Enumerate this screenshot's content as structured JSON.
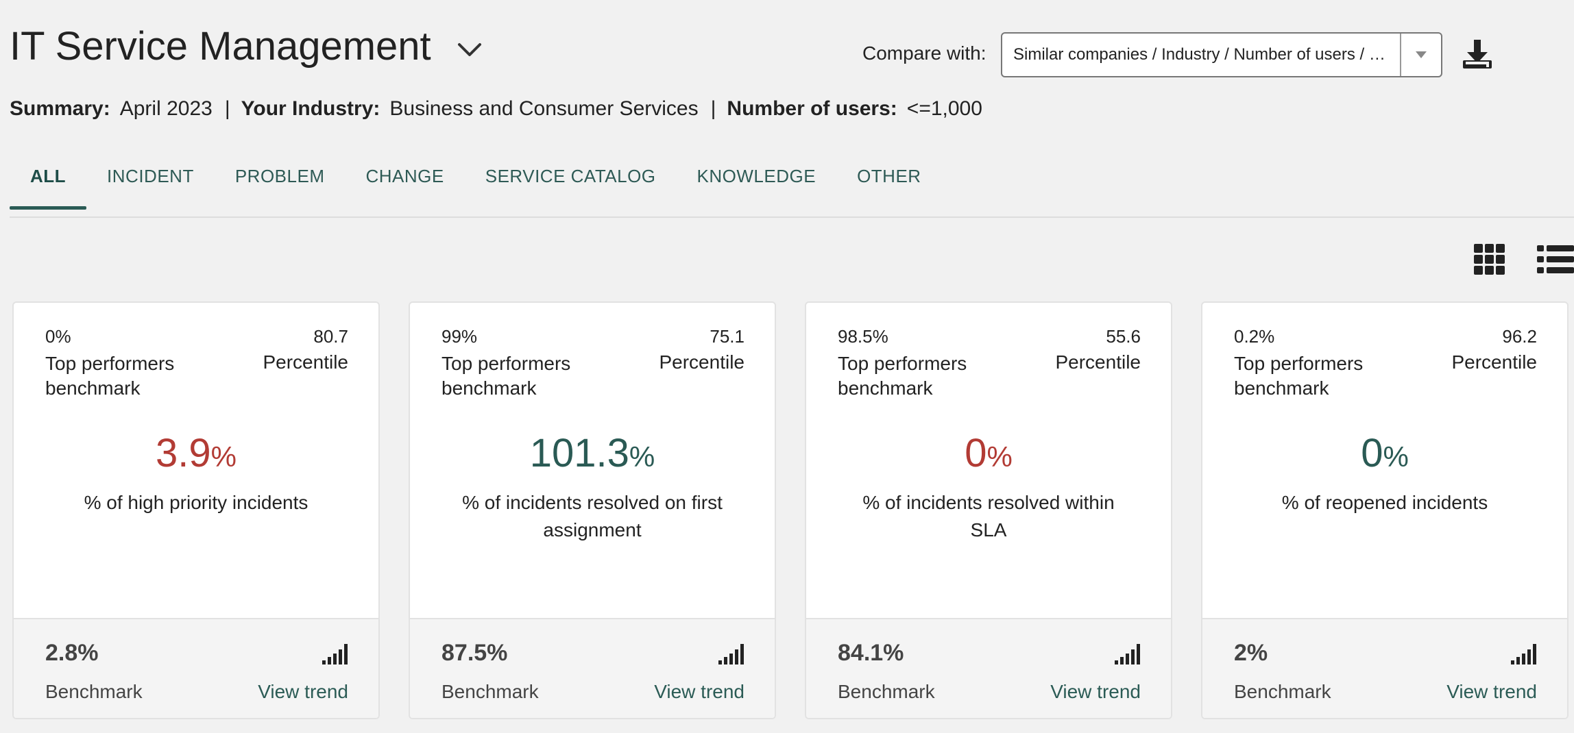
{
  "header": {
    "title": "IT Service Management",
    "compare_label": "Compare with:",
    "compare_value": "Similar companies / Industry / Number of users / …"
  },
  "summary": {
    "summary_key": "Summary:",
    "summary_value": "April 2023",
    "industry_key": "Your Industry:",
    "industry_value": "Business and Consumer Services",
    "users_key": "Number of users:",
    "users_value": "<=1,000",
    "separator": "|"
  },
  "tabs": [
    {
      "label": "ALL"
    },
    {
      "label": "INCIDENT"
    },
    {
      "label": "PROBLEM"
    },
    {
      "label": "CHANGE"
    },
    {
      "label": "SERVICE CATALOG"
    },
    {
      "label": "KNOWLEDGE"
    },
    {
      "label": "OTHER"
    }
  ],
  "cards": [
    {
      "top_value": "0%",
      "top_label_1": "Top performers",
      "top_label_2": "benchmark",
      "percentile_value": "80.7",
      "percentile_label": "Percentile",
      "metric_number": "3.9",
      "metric_unit": "%",
      "metric_color": "#b23b34",
      "description": "% of high priority incidents",
      "benchmark_value": "2.8%",
      "benchmark_label": "Benchmark",
      "trend_label": "View trend"
    },
    {
      "top_value": "99%",
      "top_label_1": "Top performers",
      "top_label_2": "benchmark",
      "percentile_value": "75.1",
      "percentile_label": "Percentile",
      "metric_number": "101.3",
      "metric_unit": "%",
      "metric_color": "#2a5a54",
      "description": "% of incidents resolved on first assignment",
      "benchmark_value": "87.5%",
      "benchmark_label": "Benchmark",
      "trend_label": "View trend"
    },
    {
      "top_value": "98.5%",
      "top_label_1": "Top performers",
      "top_label_2": "benchmark",
      "percentile_value": "55.6",
      "percentile_label": "Percentile",
      "metric_number": "0",
      "metric_unit": "%",
      "metric_color": "#b23b34",
      "description": "% of incidents resolved within SLA",
      "benchmark_value": "84.1%",
      "benchmark_label": "Benchmark",
      "trend_label": "View trend"
    },
    {
      "top_value": "0.2%",
      "top_label_1": "Top performers",
      "top_label_2": "benchmark",
      "percentile_value": "96.2",
      "percentile_label": "Percentile",
      "metric_number": "0",
      "metric_unit": "%",
      "metric_color": "#2a5a54",
      "description": "% of reopened incidents",
      "benchmark_value": "2%",
      "benchmark_label": "Benchmark",
      "trend_label": "View trend"
    }
  ]
}
